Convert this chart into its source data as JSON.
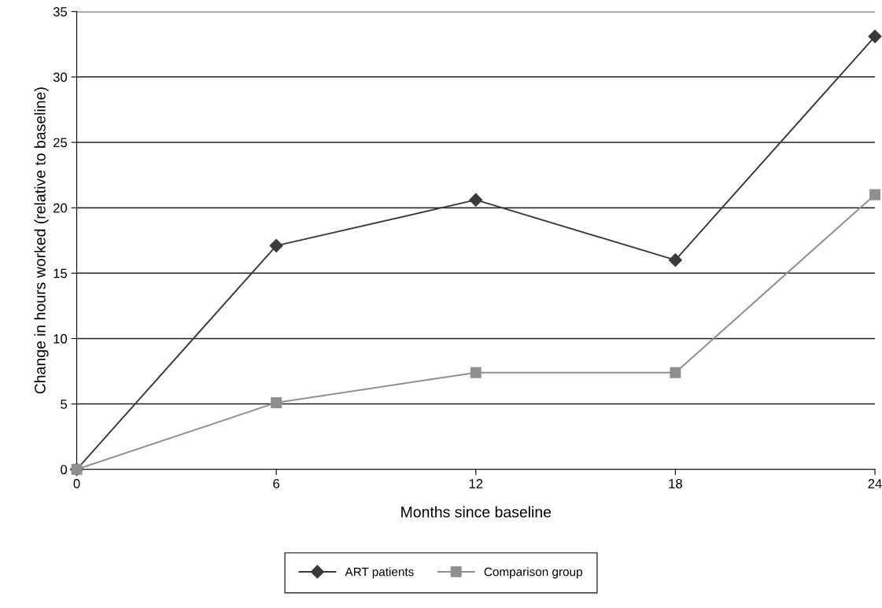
{
  "chart_data": {
    "type": "line",
    "xlabel": "Months since baseline",
    "ylabel": "Change in hours worked (relative to baseline)",
    "x": [
      0,
      6,
      12,
      18,
      24
    ],
    "series": [
      {
        "name": "ART patients",
        "color": "#3a3a3a",
        "marker": "diamond",
        "values": [
          0,
          17.1,
          20.6,
          16.0,
          33.1
        ]
      },
      {
        "name": "Comparison group",
        "color": "#8f8f8f",
        "marker": "square",
        "values": [
          0,
          5.1,
          7.4,
          7.4,
          21.0
        ]
      }
    ],
    "xlim": [
      0,
      24
    ],
    "xticks": [
      0,
      6,
      12,
      18,
      24
    ],
    "ylim": [
      0,
      35
    ],
    "yticks": [
      0,
      5,
      10,
      15,
      20,
      25,
      30,
      35
    ],
    "grid": "y",
    "legend": "bottom",
    "line_style": "solid"
  }
}
